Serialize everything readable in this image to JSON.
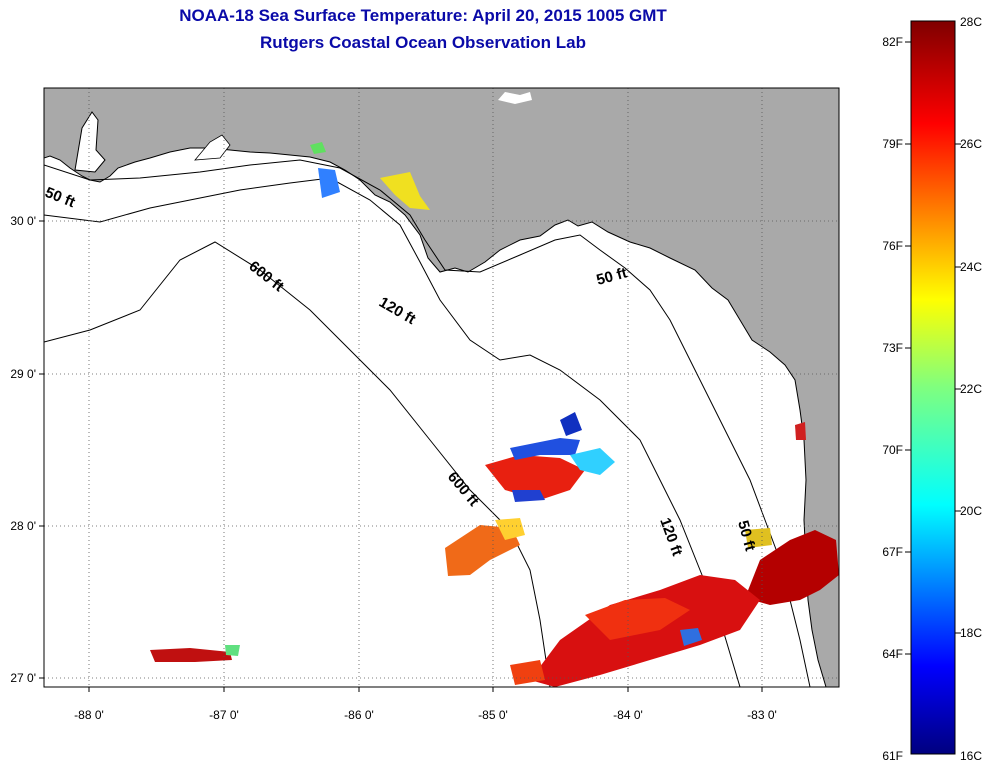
{
  "title": {
    "line1": "NOAA-18 Sea Surface Temperature:  April 20, 2015 1005 GMT",
    "line2": "Rutgers Coastal Ocean Observation Lab"
  },
  "map": {
    "lon_ticks": [
      "-88 0'",
      "-87 0'",
      "-86 0'",
      "-85 0'",
      "-84 0'",
      "-83 0'"
    ],
    "lat_ticks": [
      "30 0'",
      "29 0'",
      "28 0'",
      "27 0'"
    ],
    "contour_labels": [
      "50 ft",
      "600 ft",
      "120 ft",
      "50 ft",
      "600 ft",
      "120 ft",
      "50 ft"
    ],
    "colors": {
      "land": "#a9a9a9",
      "water": "#ffffff"
    }
  },
  "colorbar": {
    "fahrenheit": [
      "82F",
      "79F",
      "76F",
      "73F",
      "70F",
      "67F",
      "64F",
      "61F"
    ],
    "celsius": [
      "28C",
      "26C",
      "24C",
      "22C",
      "20C",
      "18C",
      "16C"
    ],
    "range_c": [
      16,
      28
    ]
  }
}
